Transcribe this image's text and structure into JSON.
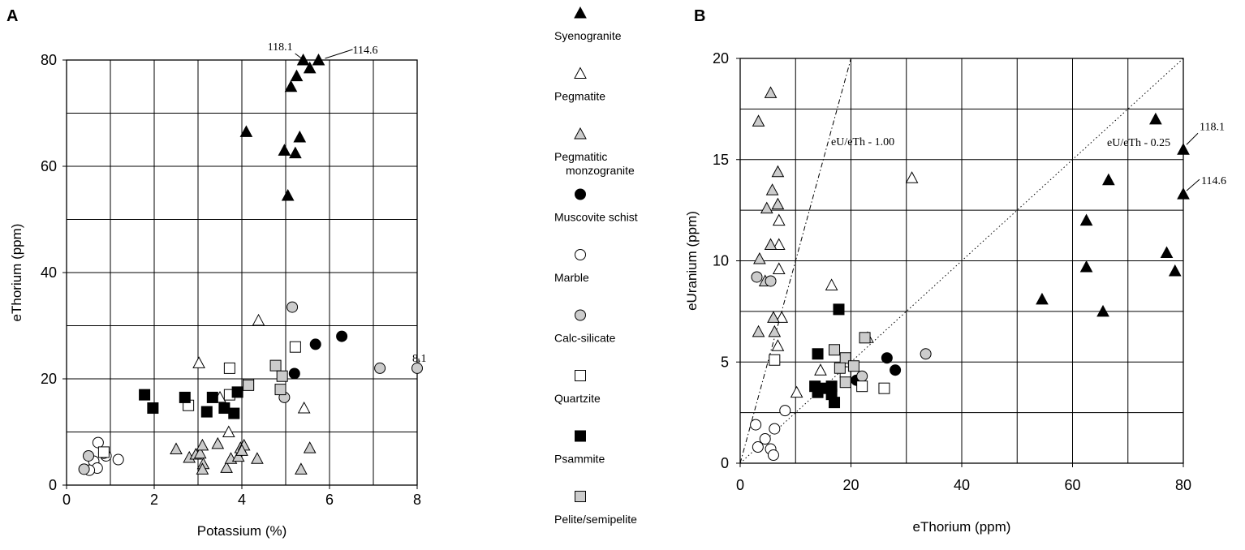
{
  "chart_data": [
    {
      "panel": "A",
      "type": "scatter",
      "xlabel": "Potassium (%)",
      "ylabel": "eThorium (ppm)",
      "xlim": [
        0,
        8
      ],
      "ylim": [
        0,
        80
      ],
      "xticks": [
        0,
        2,
        4,
        6,
        8
      ],
      "yticks": [
        0,
        20,
        40,
        60,
        80
      ],
      "grid": true,
      "annotations": [
        {
          "text": "118.1",
          "x": 5.4,
          "y": 80
        },
        {
          "text": "114.6",
          "x": 5.75,
          "y": 80
        },
        {
          "text": "8.1",
          "x": 8.0,
          "y": 22
        }
      ],
      "series": [
        {
          "name": "Syenogranite",
          "marker": "triangle",
          "fill": "#000000",
          "points": [
            [
              5.4,
              80
            ],
            [
              5.75,
              80
            ],
            [
              5.55,
              78.5
            ],
            [
              5.25,
              77
            ],
            [
              5.12,
              75
            ],
            [
              4.1,
              66.5
            ],
            [
              5.32,
              65.5
            ],
            [
              4.97,
              63
            ],
            [
              5.22,
              62.5
            ],
            [
              5.05,
              54.5
            ]
          ]
        },
        {
          "name": "Pegmatite",
          "marker": "triangle",
          "fill": "#ffffff",
          "points": [
            [
              4.38,
              31
            ],
            [
              3.02,
              23
            ],
            [
              5.42,
              14.5
            ],
            [
              3.7,
              10
            ],
            [
              3.5,
              16.5
            ]
          ]
        },
        {
          "name": "Pegmatitic monzogranite",
          "marker": "triangle",
          "fill": "#cccccc",
          "points": [
            [
              2.5,
              6.8
            ],
            [
              2.8,
              5.2
            ],
            [
              2.95,
              5.8
            ],
            [
              3.05,
              6
            ],
            [
              3.1,
              7.5
            ],
            [
              3.12,
              4
            ],
            [
              3.1,
              3
            ],
            [
              3.45,
              7.8
            ],
            [
              3.65,
              3.3
            ],
            [
              3.75,
              5
            ],
            [
              3.92,
              5.4
            ],
            [
              3.97,
              7
            ],
            [
              4.05,
              7.5
            ],
            [
              4.0,
              6.5
            ],
            [
              4.35,
              5
            ],
            [
              5.35,
              3
            ],
            [
              5.55,
              7
            ]
          ]
        },
        {
          "name": "Muscovite schist",
          "marker": "circle",
          "fill": "#000000",
          "points": [
            [
              6.28,
              28
            ],
            [
              5.68,
              26.5
            ],
            [
              5.2,
              21
            ]
          ]
        },
        {
          "name": "Marble",
          "marker": "circle",
          "fill": "#ffffff",
          "points": [
            [
              0.72,
              8
            ],
            [
              0.62,
              4.5
            ],
            [
              0.7,
              3.2
            ],
            [
              0.9,
              5.5
            ],
            [
              0.52,
              2.8
            ],
            [
              1.18,
              4.8
            ],
            [
              0.85,
              6
            ]
          ]
        },
        {
          "name": "Calc-silicate",
          "marker": "circle",
          "fill": "#cccccc",
          "points": [
            [
              5.15,
              33.5
            ],
            [
              4.97,
              16.5
            ],
            [
              7.15,
              22
            ],
            [
              8.0,
              22
            ],
            [
              0.5,
              5.5
            ],
            [
              0.4,
              3
            ]
          ]
        },
        {
          "name": "Quartzite",
          "marker": "square",
          "fill": "#ffffff",
          "points": [
            [
              3.72,
              22
            ],
            [
              5.22,
              26
            ],
            [
              2.78,
              15
            ],
            [
              3.72,
              17
            ],
            [
              4.15,
              19
            ],
            [
              0.85,
              6.2
            ]
          ]
        },
        {
          "name": "Psammite",
          "marker": "square",
          "fill": "#000000",
          "points": [
            [
              1.78,
              17
            ],
            [
              1.97,
              14.5
            ],
            [
              2.7,
              16.5
            ],
            [
              3.2,
              13.8
            ],
            [
              3.33,
              16.5
            ],
            [
              3.6,
              14.5
            ],
            [
              3.82,
              13.5
            ],
            [
              3.9,
              17.5
            ]
          ]
        },
        {
          "name": "Pelite/semipelite",
          "marker": "square",
          "fill": "#cccccc",
          "points": [
            [
              4.77,
              22.5
            ],
            [
              4.92,
              20.5
            ],
            [
              4.88,
              18
            ],
            [
              4.15,
              18.8
            ]
          ]
        }
      ]
    },
    {
      "panel": "B",
      "type": "scatter",
      "xlabel": "eThorium (ppm)",
      "ylabel": "eUranium (ppm)",
      "xlim": [
        0,
        80
      ],
      "ylim": [
        0,
        20
      ],
      "xticks": [
        0,
        20,
        40,
        60,
        80
      ],
      "yticks": [
        0,
        5,
        10,
        15,
        20
      ],
      "grid": true,
      "lines": [
        {
          "label": "eU/eTh - 1.00",
          "slope": 1.0,
          "style": "dashdot"
        },
        {
          "label": "eU/eTh - 0.25",
          "slope": 0.25,
          "style": "dotted"
        }
      ],
      "annotations": [
        {
          "text": "118.1",
          "x": 80,
          "y": 15.5
        },
        {
          "text": "114.6",
          "x": 80,
          "y": 13.3
        }
      ],
      "series": [
        {
          "name": "Syenogranite",
          "marker": "triangle",
          "fill": "#000000",
          "points": [
            [
              75,
              17
            ],
            [
              80,
              15.5
            ],
            [
              80,
              13.3
            ],
            [
              66.5,
              14
            ],
            [
              62.5,
              12
            ],
            [
              62.5,
              9.7
            ],
            [
              77,
              10.4
            ],
            [
              78.5,
              9.5
            ],
            [
              54.5,
              8.1
            ],
            [
              65.5,
              7.5
            ]
          ]
        },
        {
          "name": "Pegmatite",
          "marker": "triangle",
          "fill": "#ffffff",
          "points": [
            [
              31,
              14.1
            ],
            [
              16.5,
              8.8
            ],
            [
              7,
              10.8
            ],
            [
              7,
              12
            ],
            [
              7,
              9.6
            ],
            [
              7.5,
              7.2
            ],
            [
              6.8,
              5.8
            ],
            [
              14.5,
              4.6
            ],
            [
              10.2,
              3.5
            ],
            [
              23,
              6.2
            ]
          ]
        },
        {
          "name": "Pegmatitic monzogranite",
          "marker": "triangle",
          "fill": "#cccccc",
          "points": [
            [
              5.5,
              18.3
            ],
            [
              3.3,
              16.9
            ],
            [
              6.8,
              14.4
            ],
            [
              5.8,
              13.5
            ],
            [
              6.8,
              12.8
            ],
            [
              4.8,
              12.6
            ],
            [
              5.5,
              10.8
            ],
            [
              3.5,
              10.1
            ],
            [
              4.5,
              9
            ],
            [
              6,
              7.2
            ],
            [
              6.2,
              6.5
            ],
            [
              3.3,
              6.5
            ]
          ]
        },
        {
          "name": "Muscovite schist",
          "marker": "circle",
          "fill": "#000000",
          "points": [
            [
              26.5,
              5.2
            ],
            [
              28,
              4.6
            ],
            [
              21,
              4.1
            ]
          ]
        },
        {
          "name": "Marble",
          "marker": "circle",
          "fill": "#ffffff",
          "points": [
            [
              2.8,
              1.9
            ],
            [
              3.2,
              0.8
            ],
            [
              4.5,
              1.2
            ],
            [
              5.5,
              0.7
            ],
            [
              6.2,
              1.7
            ],
            [
              8.1,
              2.6
            ],
            [
              6,
              0.4
            ]
          ]
        },
        {
          "name": "Calc-silicate",
          "marker": "circle",
          "fill": "#cccccc",
          "points": [
            [
              3,
              9.2
            ],
            [
              5.5,
              9
            ],
            [
              22,
              4.3
            ],
            [
              33.5,
              5.4
            ]
          ]
        },
        {
          "name": "Quartzite",
          "marker": "square",
          "fill": "#ffffff",
          "points": [
            [
              6.2,
              5.1
            ],
            [
              22,
              3.8
            ],
            [
              26,
              3.7
            ],
            [
              19,
              4.5
            ]
          ]
        },
        {
          "name": "Psammite",
          "marker": "square",
          "fill": "#000000",
          "points": [
            [
              17.8,
              7.6
            ],
            [
              14,
              5.4
            ],
            [
              13.5,
              3.8
            ],
            [
              14,
              3.5
            ],
            [
              15,
              3.7
            ],
            [
              16.5,
              3.4
            ],
            [
              16.5,
              3.8
            ],
            [
              17,
              3
            ]
          ]
        },
        {
          "name": "Pelite/semipelite",
          "marker": "square",
          "fill": "#cccccc",
          "points": [
            [
              22.5,
              6.2
            ],
            [
              17,
              5.6
            ],
            [
              19,
              5.2
            ],
            [
              18,
              4.7
            ],
            [
              20.5,
              4.8
            ],
            [
              19,
              4
            ]
          ]
        }
      ]
    }
  ],
  "legend": {
    "placement": "between-panels",
    "items": [
      {
        "label": "Syenogranite",
        "marker": "triangle",
        "fill": "#000000"
      },
      {
        "label": "Pegmatite",
        "marker": "triangle",
        "fill": "#ffffff"
      },
      {
        "label": "Pegmatitic",
        "label2": "monzogranite",
        "marker": "triangle",
        "fill": "#cccccc"
      },
      {
        "label": "Muscovite schist",
        "marker": "circle",
        "fill": "#000000"
      },
      {
        "label": "Marble",
        "marker": "circle",
        "fill": "#ffffff"
      },
      {
        "label": "Calc-silicate",
        "marker": "circle",
        "fill": "#cccccc"
      },
      {
        "label": "Quartzite",
        "marker": "square",
        "fill": "#ffffff"
      },
      {
        "label": "Psammite",
        "marker": "square",
        "fill": "#000000"
      },
      {
        "label": "Pelite/semipelite",
        "marker": "square",
        "fill": "#cccccc"
      }
    ]
  }
}
